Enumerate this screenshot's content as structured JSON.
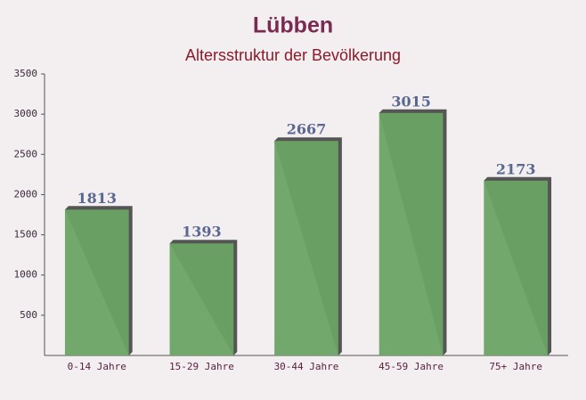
{
  "chart_data": {
    "type": "bar",
    "title": "Lübben",
    "subtitle": "Altersstruktur der Bevölkerung",
    "categories": [
      "0-14 Jahre",
      "15-29 Jahre",
      "30-44 Jahre",
      "45-59 Jahre",
      "75+ Jahre"
    ],
    "values": [
      1813,
      1393,
      2667,
      3015,
      2173
    ],
    "color": "#6aa364",
    "ylim": [
      0,
      3500
    ],
    "yticks": [
      500,
      1000,
      1500,
      2000,
      2500,
      3000,
      3500
    ],
    "grid": false
  }
}
